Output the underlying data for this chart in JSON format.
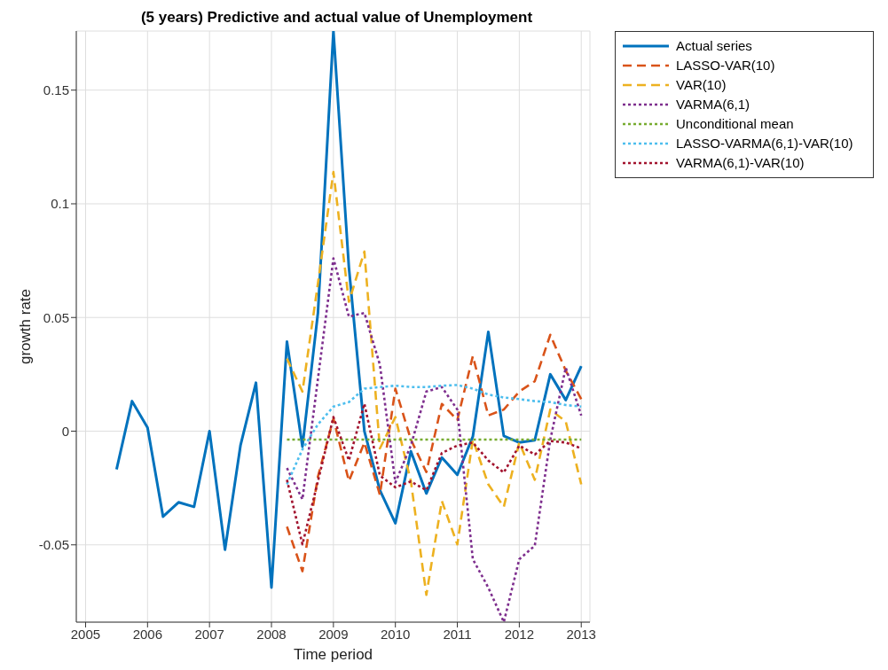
{
  "chart_data": {
    "type": "line",
    "title": "(5 years) Predictive and actual value of Unemployment",
    "xlabel": "Time period",
    "ylabel": "growth rate",
    "xlim": [
      2004.85,
      2013.14
    ],
    "xticks": [
      2005,
      2006,
      2007,
      2008,
      2009,
      2010,
      2011,
      2012,
      2013
    ],
    "ylim": [
      -0.084,
      0.176
    ],
    "yticks": [
      -0.05,
      0,
      0.05,
      0.1,
      0.15
    ],
    "grid": true,
    "legend": "top right",
    "marker": "none",
    "series": [
      {
        "name": "Actual series",
        "color": "#0072bd",
        "line_style": "solid",
        "x": [
          2005.5,
          2005.75,
          2006,
          2006.25,
          2006.5,
          2006.75,
          2007,
          2007.25,
          2007.5,
          2007.75,
          2008,
          2008.25,
          2008.5,
          2008.75,
          2009,
          2009.25,
          2009.5,
          2009.75,
          2010,
          2010.25,
          2010.5,
          2010.75,
          2011,
          2011.25,
          2011.5,
          2011.75,
          2012,
          2012.25,
          2012.5,
          2012.75,
          2013
        ],
        "values": [
          -0.0168,
          0.0132,
          0.0016,
          -0.0376,
          -0.0313,
          -0.0333,
          0.0,
          -0.0521,
          -0.0063,
          0.0213,
          -0.0688,
          0.0394,
          -0.0068,
          0.052,
          0.176,
          0.072,
          0.0,
          -0.026,
          -0.0405,
          -0.0089,
          -0.0274,
          -0.0116,
          -0.0192,
          -0.0024,
          0.0437,
          -0.0021,
          -0.005,
          -0.004,
          0.025,
          0.0137,
          0.0286
        ]
      },
      {
        "name": "LASSO-VAR(10)",
        "color": "#d95319",
        "line_style": "dashed",
        "x": [
          2008.25,
          2008.5,
          2008.75,
          2009,
          2009.25,
          2009.5,
          2009.75,
          2010,
          2010.25,
          2010.5,
          2010.75,
          2011,
          2011.25,
          2011.5,
          2011.75,
          2012,
          2012.25,
          2012.5,
          2012.75,
          2013
        ],
        "values": [
          -0.042,
          -0.0616,
          -0.02,
          0.0055,
          -0.022,
          -0.005,
          -0.028,
          0.0187,
          -0.0037,
          -0.018,
          0.012,
          0.0049,
          0.033,
          0.0069,
          0.0095,
          0.0174,
          0.022,
          0.0424,
          0.0266,
          0.0141
        ]
      },
      {
        "name": "VAR(10)",
        "color": "#edb120",
        "line_style": "dashed",
        "x": [
          2008.25,
          2008.5,
          2008.75,
          2009,
          2009.25,
          2009.5,
          2009.75,
          2010,
          2010.25,
          2010.5,
          2010.75,
          2011,
          2011.25,
          2011.5,
          2011.75,
          2012,
          2012.25,
          2012.5,
          2012.75,
          2013
        ],
        "values": [
          0.0319,
          0.0174,
          0.065,
          0.114,
          0.0569,
          0.079,
          -0.0076,
          0.0062,
          -0.022,
          -0.072,
          -0.0307,
          -0.0498,
          -0.0037,
          -0.0234,
          -0.0333,
          -0.005,
          -0.0214,
          0.0095,
          0.0042,
          -0.0234
        ]
      },
      {
        "name": "VARMA(6,1)",
        "color": "#7e2f8e",
        "line_style": "dotted",
        "x": [
          2008.25,
          2008.5,
          2008.75,
          2009,
          2009.25,
          2009.5,
          2009.75,
          2010,
          2010.25,
          2010.5,
          2010.75,
          2011,
          2011.25,
          2011.5,
          2011.75,
          2012,
          2012.25,
          2012.5,
          2012.75,
          2013
        ],
        "values": [
          -0.0162,
          -0.03,
          0.023,
          0.076,
          0.0504,
          0.052,
          0.0292,
          -0.0226,
          -0.0063,
          0.0174,
          0.0194,
          0.0095,
          -0.0563,
          -0.0688,
          -0.084,
          -0.0563,
          -0.0504,
          -0.0037,
          0.0279,
          0.0069
        ]
      },
      {
        "name": "Unconditional mean",
        "color": "#77ac30",
        "line_style": "dotted",
        "x": [
          2008.25,
          2008.5,
          2008.75,
          2009,
          2009.25,
          2009.5,
          2009.75,
          2010,
          2010.25,
          2010.5,
          2010.75,
          2011,
          2011.25,
          2011.5,
          2011.75,
          2012,
          2012.25,
          2012.5,
          2012.75,
          2013
        ],
        "values": [
          -0.0037,
          -0.0037,
          -0.0037,
          -0.0037,
          -0.0037,
          -0.0037,
          -0.0037,
          -0.0037,
          -0.0037,
          -0.0037,
          -0.0037,
          -0.0037,
          -0.0037,
          -0.0037,
          -0.0037,
          -0.0037,
          -0.0037,
          -0.0037,
          -0.0037,
          -0.0037
        ]
      },
      {
        "name": "LASSO-VARMA(6,1)-VAR(10)",
        "color": "#4dbeee",
        "line_style": "dotted",
        "x": [
          2008.25,
          2008.5,
          2008.75,
          2009,
          2009.25,
          2009.5,
          2009.75,
          2010,
          2010.25,
          2010.5,
          2010.75,
          2011,
          2011.25,
          2011.5,
          2011.75,
          2012,
          2012.25,
          2012.5,
          2012.75,
          2013
        ],
        "values": [
          -0.0234,
          -0.008,
          0.003,
          0.0108,
          0.0128,
          0.0187,
          0.0194,
          0.02,
          0.0194,
          0.0194,
          0.02,
          0.0203,
          0.0187,
          0.0161,
          0.0148,
          0.0141,
          0.0132,
          0.0128,
          0.0115,
          0.0108
        ]
      },
      {
        "name": "VARMA(6,1)-VAR(10)",
        "color": "#a2142f",
        "line_style": "dotted",
        "x": [
          2008.25,
          2008.5,
          2008.75,
          2009,
          2009.25,
          2009.5,
          2009.75,
          2010,
          2010.25,
          2010.5,
          2010.75,
          2011,
          2011.25,
          2011.5,
          2011.75,
          2012,
          2012.25,
          2012.5,
          2012.75,
          2013
        ],
        "values": [
          -0.0214,
          -0.0498,
          -0.022,
          0.0062,
          -0.0129,
          0.0121,
          -0.0195,
          -0.0247,
          -0.0221,
          -0.026,
          -0.0096,
          -0.0063,
          -0.005,
          -0.0129,
          -0.0182,
          -0.0063,
          -0.0103,
          -0.0043,
          -0.005,
          -0.0076
        ]
      }
    ]
  }
}
